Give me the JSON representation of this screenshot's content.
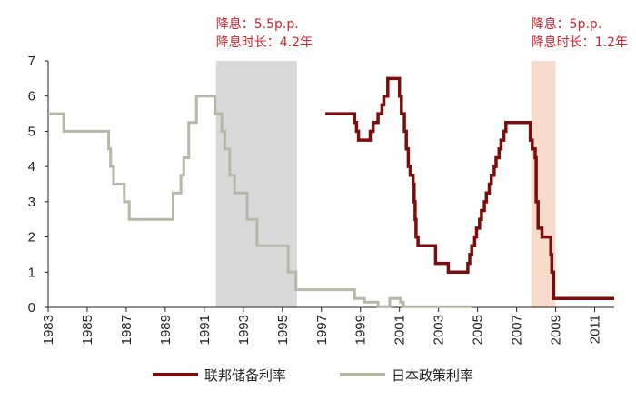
{
  "chart_data": {
    "type": "line",
    "title": "",
    "xlabel": "",
    "ylabel": "",
    "xlim": [
      1983,
      2012
    ],
    "ylim": [
      0,
      7
    ],
    "x_ticks": [
      "1983",
      "1985",
      "1987",
      "1989",
      "1991",
      "1993",
      "1995",
      "1997",
      "1999",
      "2001",
      "2003",
      "2005",
      "2007",
      "2009",
      "2011"
    ],
    "y_ticks": [
      "0",
      "1",
      "2",
      "3",
      "4",
      "5",
      "6",
      "7"
    ],
    "grid": false,
    "legend_position": "bottom",
    "shaded_periods": [
      {
        "start": 1991.6,
        "end": 1995.75,
        "color": "#d9d9d9",
        "annotation": [
          "降息：5.5p.p.",
          "降息时长：4.2年"
        ]
      },
      {
        "start": 2007.75,
        "end": 2009.0,
        "color": "#f8dccb",
        "annotation": [
          "降息：5p.p.",
          "降息时长：1.2年"
        ]
      }
    ],
    "series": [
      {
        "name": "联邦储备利率",
        "color": "#7b0d0d",
        "points": [
          [
            1997.2,
            5.5
          ],
          [
            1998.7,
            5.5
          ],
          [
            1998.7,
            5.25
          ],
          [
            1998.8,
            5.25
          ],
          [
            1998.8,
            5.0
          ],
          [
            1998.9,
            5.0
          ],
          [
            1998.9,
            4.75
          ],
          [
            1999.5,
            4.75
          ],
          [
            1999.5,
            5.0
          ],
          [
            1999.65,
            5.0
          ],
          [
            1999.65,
            5.25
          ],
          [
            1999.9,
            5.25
          ],
          [
            1999.9,
            5.5
          ],
          [
            2000.1,
            5.5
          ],
          [
            2000.1,
            5.75
          ],
          [
            2000.2,
            5.75
          ],
          [
            2000.2,
            6.0
          ],
          [
            2000.4,
            6.0
          ],
          [
            2000.4,
            6.5
          ],
          [
            2001.0,
            6.5
          ],
          [
            2001.0,
            6.0
          ],
          [
            2001.1,
            6.0
          ],
          [
            2001.1,
            5.5
          ],
          [
            2001.25,
            5.5
          ],
          [
            2001.25,
            5.0
          ],
          [
            2001.35,
            5.0
          ],
          [
            2001.35,
            4.5
          ],
          [
            2001.45,
            4.5
          ],
          [
            2001.45,
            4.0
          ],
          [
            2001.55,
            4.0
          ],
          [
            2001.55,
            3.75
          ],
          [
            2001.7,
            3.75
          ],
          [
            2001.7,
            3.5
          ],
          [
            2001.75,
            3.5
          ],
          [
            2001.75,
            3.0
          ],
          [
            2001.8,
            3.0
          ],
          [
            2001.8,
            2.5
          ],
          [
            2001.85,
            2.5
          ],
          [
            2001.85,
            2.0
          ],
          [
            2001.95,
            2.0
          ],
          [
            2001.95,
            1.75
          ],
          [
            2002.85,
            1.75
          ],
          [
            2002.85,
            1.25
          ],
          [
            2003.5,
            1.25
          ],
          [
            2003.5,
            1.0
          ],
          [
            2004.5,
            1.0
          ],
          [
            2004.5,
            1.25
          ],
          [
            2004.6,
            1.25
          ],
          [
            2004.6,
            1.5
          ],
          [
            2004.7,
            1.5
          ],
          [
            2004.7,
            1.75
          ],
          [
            2004.85,
            1.75
          ],
          [
            2004.85,
            2.0
          ],
          [
            2004.95,
            2.0
          ],
          [
            2004.95,
            2.25
          ],
          [
            2005.1,
            2.25
          ],
          [
            2005.1,
            2.5
          ],
          [
            2005.2,
            2.5
          ],
          [
            2005.2,
            2.75
          ],
          [
            2005.35,
            2.75
          ],
          [
            2005.35,
            3.0
          ],
          [
            2005.45,
            3.0
          ],
          [
            2005.45,
            3.25
          ],
          [
            2005.6,
            3.25
          ],
          [
            2005.6,
            3.5
          ],
          [
            2005.7,
            3.5
          ],
          [
            2005.7,
            3.75
          ],
          [
            2005.85,
            3.75
          ],
          [
            2005.85,
            4.0
          ],
          [
            2005.95,
            4.0
          ],
          [
            2005.95,
            4.25
          ],
          [
            2006.1,
            4.25
          ],
          [
            2006.1,
            4.5
          ],
          [
            2006.2,
            4.5
          ],
          [
            2006.2,
            4.75
          ],
          [
            2006.35,
            4.75
          ],
          [
            2006.35,
            5.0
          ],
          [
            2006.45,
            5.0
          ],
          [
            2006.45,
            5.25
          ],
          [
            2007.7,
            5.25
          ],
          [
            2007.7,
            4.75
          ],
          [
            2007.8,
            4.75
          ],
          [
            2007.8,
            4.5
          ],
          [
            2007.95,
            4.5
          ],
          [
            2007.95,
            4.25
          ],
          [
            2008.0,
            4.25
          ],
          [
            2008.0,
            3.0
          ],
          [
            2008.1,
            3.0
          ],
          [
            2008.1,
            2.25
          ],
          [
            2008.3,
            2.25
          ],
          [
            2008.3,
            2.0
          ],
          [
            2008.75,
            2.0
          ],
          [
            2008.75,
            1.5
          ],
          [
            2008.8,
            1.5
          ],
          [
            2008.8,
            1.0
          ],
          [
            2008.9,
            1.0
          ],
          [
            2008.9,
            0.25
          ],
          [
            2012.0,
            0.25
          ]
        ]
      },
      {
        "name": "日本政策利率",
        "color": "#b7b7a8",
        "points": [
          [
            1983.0,
            5.5
          ],
          [
            1983.8,
            5.5
          ],
          [
            1983.8,
            5.0
          ],
          [
            1986.1,
            5.0
          ],
          [
            1986.1,
            4.5
          ],
          [
            1986.2,
            4.5
          ],
          [
            1986.2,
            4.0
          ],
          [
            1986.35,
            4.0
          ],
          [
            1986.35,
            3.5
          ],
          [
            1986.9,
            3.5
          ],
          [
            1986.9,
            3.0
          ],
          [
            1987.15,
            3.0
          ],
          [
            1987.15,
            2.5
          ],
          [
            1989.4,
            2.5
          ],
          [
            1989.4,
            3.25
          ],
          [
            1989.8,
            3.25
          ],
          [
            1989.8,
            3.75
          ],
          [
            1989.95,
            3.75
          ],
          [
            1989.95,
            4.25
          ],
          [
            1990.2,
            4.25
          ],
          [
            1990.2,
            5.25
          ],
          [
            1990.6,
            5.25
          ],
          [
            1990.6,
            6.0
          ],
          [
            1991.55,
            6.0
          ],
          [
            1991.55,
            5.5
          ],
          [
            1991.9,
            5.5
          ],
          [
            1991.9,
            5.0
          ],
          [
            1992.05,
            5.0
          ],
          [
            1992.05,
            4.5
          ],
          [
            1992.3,
            4.5
          ],
          [
            1992.3,
            3.75
          ],
          [
            1992.55,
            3.75
          ],
          [
            1992.55,
            3.25
          ],
          [
            1993.2,
            3.25
          ],
          [
            1993.2,
            2.5
          ],
          [
            1993.7,
            2.5
          ],
          [
            1993.7,
            1.75
          ],
          [
            1995.3,
            1.75
          ],
          [
            1995.3,
            1.0
          ],
          [
            1995.7,
            1.0
          ],
          [
            1995.7,
            0.5
          ],
          [
            1998.7,
            0.5
          ],
          [
            1998.7,
            0.25
          ],
          [
            1999.2,
            0.25
          ],
          [
            1999.2,
            0.15
          ],
          [
            1999.9,
            0.15
          ],
          [
            1999.9,
            0.02
          ],
          [
            2000.5,
            0.02
          ],
          [
            2000.5,
            0.25
          ],
          [
            2001.05,
            0.25
          ],
          [
            2001.05,
            0.15
          ],
          [
            2001.2,
            0.15
          ],
          [
            2001.2,
            0.02
          ],
          [
            2004.7,
            0.02
          ]
        ]
      }
    ]
  }
}
